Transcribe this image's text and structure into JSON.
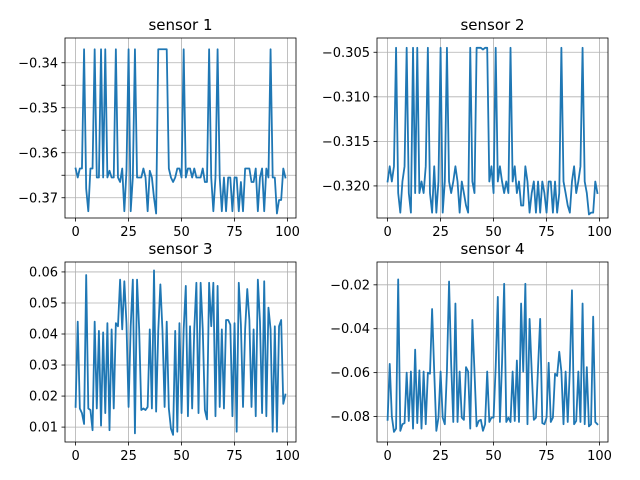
{
  "chart_data": [
    {
      "type": "line",
      "title": "sensor 1",
      "xlim": [
        -5,
        104
      ],
      "ylim": [
        -0.3745,
        -0.3345
      ],
      "xticks": [
        0,
        25,
        50,
        75,
        100
      ],
      "yticks": [
        -0.37,
        -0.365,
        -0.36,
        -0.355,
        -0.35,
        -0.345,
        -0.34
      ],
      "ytick_labels": [
        "−0.37",
        "",
        "−0.36",
        "",
        "−0.35",
        "",
        "−0.34"
      ],
      "grid": true,
      "color": "#1f77b4",
      "x_start": 0,
      "y": [
        -0.3635,
        -0.3655,
        -0.3635,
        -0.3635,
        -0.337,
        -0.368,
        -0.373,
        -0.3635,
        -0.3635,
        -0.337,
        -0.3655,
        -0.3655,
        -0.337,
        -0.3655,
        -0.337,
        -0.3655,
        -0.364,
        -0.3655,
        -0.3655,
        -0.337,
        -0.3655,
        -0.3665,
        -0.3635,
        -0.373,
        -0.364,
        -0.337,
        -0.373,
        -0.3655,
        -0.337,
        -0.3655,
        -0.3655,
        -0.3655,
        -0.3635,
        -0.3655,
        -0.373,
        -0.364,
        -0.3655,
        -0.37,
        -0.3735,
        -0.337,
        -0.337,
        -0.337,
        -0.337,
        -0.337,
        -0.3635,
        -0.3655,
        -0.3665,
        -0.3655,
        -0.3635,
        -0.3635,
        -0.3655,
        -0.337,
        -0.3655,
        -0.3635,
        -0.3635,
        -0.3655,
        -0.3635,
        -0.3655,
        -0.3655,
        -0.3655,
        -0.3635,
        -0.3665,
        -0.3665,
        -0.337,
        -0.3655,
        -0.373,
        -0.3655,
        -0.337,
        -0.3655,
        -0.373,
        -0.3655,
        -0.373,
        -0.3655,
        -0.3655,
        -0.373,
        -0.3655,
        -0.3655,
        -0.373,
        -0.3665,
        -0.373,
        -0.3635,
        -0.3635,
        -0.3635,
        -0.3665,
        -0.3665,
        -0.3635,
        -0.373,
        -0.3655,
        -0.3635,
        -0.373,
        -0.3635,
        -0.3655,
        -0.337,
        -0.3655,
        -0.3655,
        -0.3735,
        -0.3705,
        -0.3705,
        -0.3635,
        -0.3655
      ]
    },
    {
      "type": "line",
      "title": "sensor 2",
      "xlim": [
        -5,
        104
      ],
      "ylim": [
        -0.3236,
        -0.3034
      ],
      "xticks": [
        0,
        25,
        50,
        75,
        100
      ],
      "yticks": [
        -0.32,
        -0.315,
        -0.31,
        -0.305
      ],
      "ytick_labels": [
        "−0.320",
        "−0.315",
        "−0.310",
        "−0.305"
      ],
      "grid": true,
      "color": "#1f77b4",
      "x_start": 0,
      "y": [
        -0.3195,
        -0.3178,
        -0.3195,
        -0.3178,
        -0.3045,
        -0.3208,
        -0.323,
        -0.3195,
        -0.3178,
        -0.3045,
        -0.3208,
        -0.323,
        -0.3045,
        -0.3208,
        -0.3045,
        -0.3208,
        -0.3195,
        -0.3208,
        -0.3178,
        -0.3045,
        -0.3208,
        -0.323,
        -0.3178,
        -0.323,
        -0.3195,
        -0.3045,
        -0.323,
        -0.3195,
        -0.3045,
        -0.3195,
        -0.3208,
        -0.3195,
        -0.3178,
        -0.3195,
        -0.323,
        -0.3195,
        -0.3208,
        -0.3222,
        -0.323,
        -0.3045,
        -0.3195,
        -0.3208,
        -0.3045,
        -0.3045,
        -0.3045,
        -0.3047,
        -0.3045,
        -0.3045,
        -0.3195,
        -0.3178,
        -0.3208,
        -0.3045,
        -0.3195,
        -0.3178,
        -0.3195,
        -0.3208,
        -0.3195,
        -0.3208,
        -0.3045,
        -0.3195,
        -0.3178,
        -0.3208,
        -0.3195,
        -0.3222,
        -0.3222,
        -0.3178,
        -0.3195,
        -0.323,
        -0.3208,
        -0.3195,
        -0.323,
        -0.3195,
        -0.323,
        -0.3195,
        -0.3208,
        -0.323,
        -0.3195,
        -0.3195,
        -0.323,
        -0.3195,
        -0.323,
        -0.3208,
        -0.3045,
        -0.3195,
        -0.3208,
        -0.3222,
        -0.323,
        -0.3195,
        -0.3178,
        -0.3208,
        -0.3195,
        -0.3178,
        -0.3045,
        -0.3195,
        -0.3208,
        -0.3232,
        -0.323,
        -0.323,
        -0.3195,
        -0.3208
      ]
    },
    {
      "type": "line",
      "title": "sensor 3",
      "xlim": [
        -5,
        104
      ],
      "ylim": [
        0.0052,
        0.0632
      ],
      "xticks": [
        0,
        25,
        50,
        75,
        100
      ],
      "yticks": [
        0.01,
        0.02,
        0.03,
        0.04,
        0.05,
        0.06
      ],
      "ytick_labels": [
        "0.01",
        "0.02",
        "0.03",
        "0.04",
        "0.05",
        "0.06"
      ],
      "grid": true,
      "color": "#1f77b4",
      "x_start": 0,
      "y": [
        0.0165,
        0.044,
        0.016,
        0.0145,
        0.011,
        0.059,
        0.016,
        0.0155,
        0.009,
        0.044,
        0.016,
        0.041,
        0.0105,
        0.0405,
        0.0145,
        0.0435,
        0.009,
        0.0415,
        0.016,
        0.0435,
        0.0425,
        0.0575,
        0.0415,
        0.057,
        0.0435,
        0.0165,
        0.0425,
        0.0575,
        0.008,
        0.0575,
        0.0415,
        0.0155,
        0.016,
        0.0155,
        0.0165,
        0.0415,
        0.016,
        0.0605,
        0.015,
        0.041,
        0.056,
        0.041,
        0.0165,
        0.044,
        0.016,
        0.0095,
        0.0075,
        0.041,
        0.0085,
        0.0435,
        0.0145,
        0.0415,
        0.0555,
        0.0135,
        0.0425,
        0.016,
        0.0415,
        0.0565,
        0.0145,
        0.0565,
        0.0415,
        0.0155,
        0.0125,
        0.0565,
        0.0425,
        0.0565,
        0.0135,
        0.0555,
        0.0165,
        0.0415,
        0.016,
        0.0445,
        0.0445,
        0.043,
        0.0135,
        0.0435,
        0.0085,
        0.0565,
        0.043,
        0.0165,
        0.0415,
        0.0545,
        0.0445,
        0.0165,
        0.0415,
        0.0135,
        0.0575,
        0.044,
        0.0145,
        0.057,
        0.0135,
        0.0485,
        0.0415,
        0.0085,
        0.0425,
        0.0085,
        0.0425,
        0.0445,
        0.0175,
        0.0205
      ]
    },
    {
      "type": "line",
      "title": "sensor 4",
      "xlim": [
        -5,
        104
      ],
      "ylim": [
        -0.0916,
        -0.0096
      ],
      "xticks": [
        0,
        25,
        50,
        75,
        100
      ],
      "yticks": [
        -0.08,
        -0.06,
        -0.04,
        -0.02
      ],
      "ytick_labels": [
        "−0.08",
        "−0.06",
        "−0.04",
        "−0.02"
      ],
      "grid": true,
      "color": "#1f77b4",
      "x_start": 0,
      "y": [
        -0.0815,
        -0.056,
        -0.08,
        -0.087,
        -0.0855,
        -0.0175,
        -0.0865,
        -0.0835,
        -0.083,
        -0.06,
        -0.082,
        -0.0595,
        -0.0855,
        -0.0495,
        -0.083,
        -0.059,
        -0.0855,
        -0.0595,
        -0.0835,
        -0.06,
        -0.0605,
        -0.031,
        -0.0595,
        -0.0865,
        -0.0805,
        -0.0595,
        -0.0805,
        -0.0835,
        -0.059,
        -0.0185,
        -0.056,
        -0.0825,
        -0.0285,
        -0.0825,
        -0.0595,
        -0.0805,
        -0.0815,
        -0.0575,
        -0.0595,
        -0.0855,
        -0.036,
        -0.0595,
        -0.0845,
        -0.082,
        -0.0815,
        -0.0865,
        -0.0835,
        -0.0595,
        -0.0825,
        -0.0805,
        -0.0805,
        -0.0575,
        -0.0255,
        -0.0825,
        -0.0555,
        -0.0195,
        -0.0825,
        -0.0805,
        -0.0825,
        -0.0595,
        -0.082,
        -0.0545,
        -0.0825,
        -0.0285,
        -0.0595,
        -0.0195,
        -0.0835,
        -0.0355,
        -0.0595,
        -0.0815,
        -0.0805,
        -0.0575,
        -0.0355,
        -0.083,
        -0.0835,
        -0.0805,
        -0.0555,
        -0.0825,
        -0.0805,
        -0.0605,
        -0.0615,
        -0.0505,
        -0.0595,
        -0.0835,
        -0.0595,
        -0.0825,
        -0.0585,
        -0.0225,
        -0.0835,
        -0.082,
        -0.0595,
        -0.0825,
        -0.0285,
        -0.0835,
        -0.0575,
        -0.0845,
        -0.0835,
        -0.0345,
        -0.0825,
        -0.0835
      ]
    }
  ]
}
